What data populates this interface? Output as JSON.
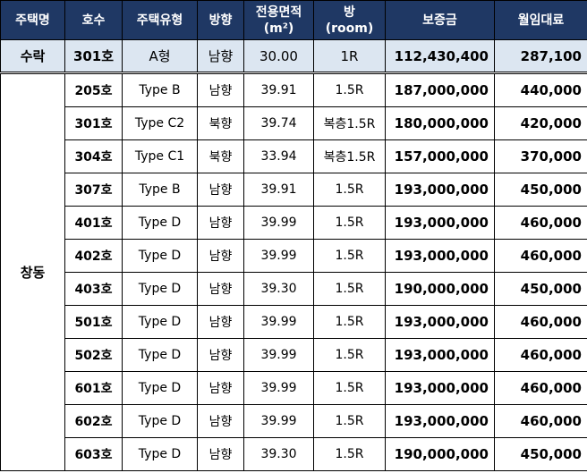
{
  "table": {
    "headers": [
      [
        "주택명"
      ],
      [
        "호수"
      ],
      [
        "주택유형"
      ],
      [
        "방향"
      ],
      [
        "전용면적",
        "(m²)"
      ],
      [
        "방",
        "(room)"
      ],
      [
        "보증금"
      ],
      [
        "월임대료"
      ]
    ],
    "groups": [
      {
        "name": "수락",
        "rows": [
          [
            "301호",
            "A형",
            "남향",
            "30.00",
            "1R",
            "112,430,400",
            "287,100"
          ]
        ]
      },
      {
        "name": "창동",
        "rows": [
          [
            "205호",
            "Type B",
            "남향",
            "39.91",
            "1.5R",
            "187,000,000",
            "440,000"
          ],
          [
            "301호",
            "Type C2",
            "북향",
            "39.74",
            "복층1.5R",
            "180,000,000",
            "420,000"
          ],
          [
            "304호",
            "Type C1",
            "북향",
            "33.94",
            "복층1.5R",
            "157,000,000",
            "370,000"
          ],
          [
            "307호",
            "Type B",
            "남향",
            "39.91",
            "1.5R",
            "193,000,000",
            "450,000"
          ],
          [
            "401호",
            "Type D",
            "남향",
            "39.99",
            "1.5R",
            "193,000,000",
            "460,000"
          ],
          [
            "402호",
            "Type D",
            "남향",
            "39.99",
            "1.5R",
            "193,000,000",
            "460,000"
          ],
          [
            "403호",
            "Type D",
            "남향",
            "39.30",
            "1.5R",
            "190,000,000",
            "450,000"
          ],
          [
            "501호",
            "Type D",
            "남향",
            "39.99",
            "1.5R",
            "193,000,000",
            "460,000"
          ],
          [
            "502호",
            "Type D",
            "남향",
            "39.99",
            "1.5R",
            "193,000,000",
            "460,000"
          ],
          [
            "601호",
            "Type D",
            "남향",
            "39.99",
            "1.5R",
            "193,000,000",
            "460,000"
          ],
          [
            "602호",
            "Type D",
            "남향",
            "39.99",
            "1.5R",
            "193,000,000",
            "460,000"
          ],
          [
            "603호",
            "Type D",
            "남향",
            "39.30",
            "1.5R",
            "190,000,000",
            "450,000"
          ]
        ]
      }
    ]
  }
}
